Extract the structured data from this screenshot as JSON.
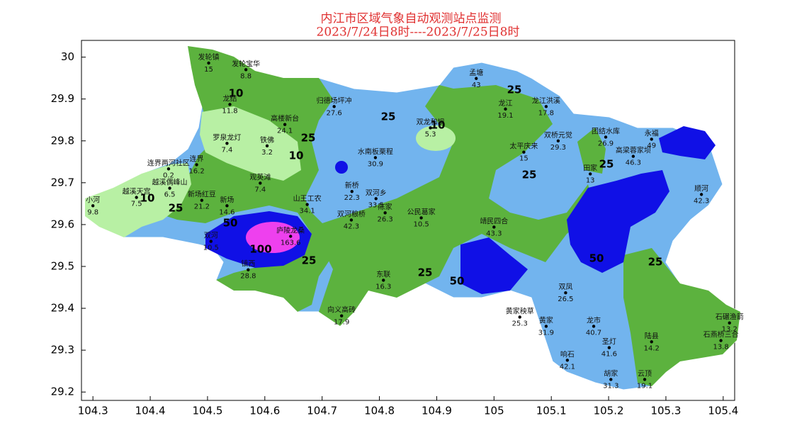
{
  "title": "内江市区域气象自动观测站点监测",
  "subtitle": "2023/7/24日8时----2023/7/25日8时",
  "map": {
    "xlim": [
      104.28,
      105.42
    ],
    "ylim": [
      29.18,
      30.04
    ],
    "xticks": [
      104.3,
      104.4,
      104.5,
      104.6,
      104.7,
      104.8,
      104.9,
      105,
      105.1,
      105.2,
      105.3,
      105.4
    ],
    "yticks": [
      29.2,
      29.3,
      29.4,
      29.5,
      29.6,
      29.7,
      29.8,
      29.9,
      30
    ],
    "contour_labels": [
      10,
      25,
      25,
      10,
      25,
      10,
      10,
      25,
      50,
      100,
      25,
      25,
      50,
      25,
      25,
      50,
      25
    ],
    "stations": [
      {
        "name": "发轮镇",
        "value": 15,
        "lon": 104.502,
        "lat": 29.986
      },
      {
        "name": "发轮宝华",
        "value": 8.8,
        "lon": 104.567,
        "lat": 29.97
      },
      {
        "name": "龙结",
        "value": 11.8,
        "lon": 104.539,
        "lat": 29.887
      },
      {
        "name": "高楼新台",
        "value": 24.1,
        "lon": 104.635,
        "lat": 29.839
      },
      {
        "name": "归德场坪冲",
        "value": 27.6,
        "lon": 104.721,
        "lat": 29.882
      },
      {
        "name": "罗泉龙灯",
        "value": 7.4,
        "lon": 104.534,
        "lat": 29.794
      },
      {
        "name": "铁佛",
        "value": 3.2,
        "lon": 104.604,
        "lat": 29.788
      },
      {
        "name": "连界两河社区",
        "value": 0.2,
        "lon": 104.432,
        "lat": 29.733
      },
      {
        "name": "连界",
        "value": 16.2,
        "lon": 104.481,
        "lat": 29.743
      },
      {
        "name": "越溪天宫",
        "value": 7.5,
        "lon": 104.376,
        "lat": 29.665
      },
      {
        "name": "越溪偶峰山",
        "value": 6.5,
        "lon": 104.434,
        "lat": 29.687
      },
      {
        "name": "观英滩",
        "value": 7.4,
        "lon": 104.592,
        "lat": 29.699
      },
      {
        "name": "新场",
        "value": 14.6,
        "lon": 104.534,
        "lat": 29.645
      },
      {
        "name": "新场红豆",
        "value": 21.2,
        "lon": 104.49,
        "lat": 29.658
      },
      {
        "name": "小河",
        "value": 9.8,
        "lon": 104.3,
        "lat": 29.645
      },
      {
        "name": "山王工农",
        "value": 34.1,
        "lon": 104.674,
        "lat": 29.648
      },
      {
        "name": "庐陵龙桑",
        "value": 163.6,
        "lon": 104.645,
        "lat": 29.572
      },
      {
        "name": "双河",
        "value": 10.5,
        "lon": 104.506,
        "lat": 29.56
      },
      {
        "name": "镇西",
        "value": 28.8,
        "lon": 104.571,
        "lat": 29.492
      },
      {
        "name": "水南板栗程",
        "value": 30.9,
        "lon": 104.793,
        "lat": 29.76
      },
      {
        "name": "新桥",
        "value": 22.3,
        "lon": 104.752,
        "lat": 29.679
      },
      {
        "name": "双河乡",
        "value": 33.5,
        "lon": 104.794,
        "lat": 29.662
      },
      {
        "name": "双河粮桥",
        "value": 42.3,
        "lon": 104.751,
        "lat": 29.611
      },
      {
        "name": "陈家",
        "value": 26.3,
        "lon": 104.81,
        "lat": 29.628
      },
      {
        "name": "公民葛家",
        "value": 10.5,
        "lon": 104.873,
        "lat": 29.616
      },
      {
        "name": "孟塘",
        "value": 43,
        "lon": 104.969,
        "lat": 29.949
      },
      {
        "name": "龙江",
        "value": 19.1,
        "lon": 105.02,
        "lat": 29.876
      },
      {
        "name": "龙江洪溪",
        "value": 17.8,
        "lon": 105.091,
        "lat": 29.882
      },
      {
        "name": "双龙和坝",
        "value": 5.3,
        "lon": 104.889,
        "lat": 29.831
      },
      {
        "name": "太平庆来",
        "value": 15,
        "lon": 105.052,
        "lat": 29.773
      },
      {
        "name": "双桥元觉",
        "value": 29.3,
        "lon": 105.112,
        "lat": 29.8
      },
      {
        "name": "团结水库",
        "value": 26.9,
        "lon": 105.195,
        "lat": 29.809
      },
      {
        "name": "永福",
        "value": 49,
        "lon": 105.275,
        "lat": 29.804
      },
      {
        "name": "高梁蓉家坝",
        "value": 46.3,
        "lon": 105.243,
        "lat": 29.763
      },
      {
        "name": "田家",
        "value": 13,
        "lon": 105.168,
        "lat": 29.721
      },
      {
        "name": "顺河",
        "value": 42.3,
        "lon": 105.362,
        "lat": 29.672
      },
      {
        "name": "靖民四合",
        "value": 43.3,
        "lon": 105.0,
        "lat": 29.594
      },
      {
        "name": "双凤",
        "value": 26.5,
        "lon": 105.125,
        "lat": 29.437
      },
      {
        "name": "石碾渔箭",
        "value": 13.2,
        "lon": 105.411,
        "lat": 29.365
      },
      {
        "name": "石燕桥三合",
        "value": 13.8,
        "lon": 105.396,
        "lat": 29.323
      },
      {
        "name": "龙市",
        "value": 40.7,
        "lon": 105.174,
        "lat": 29.357
      },
      {
        "name": "黄家",
        "value": 31.9,
        "lon": 105.091,
        "lat": 29.357
      },
      {
        "name": "黄家秧草",
        "value": 25.3,
        "lon": 105.045,
        "lat": 29.379
      },
      {
        "name": "圣灯",
        "value": 41.6,
        "lon": 105.201,
        "lat": 29.306
      },
      {
        "name": "响石",
        "value": 42.1,
        "lon": 105.128,
        "lat": 29.276
      },
      {
        "name": "胡家",
        "value": 31.3,
        "lon": 105.204,
        "lat": 29.23
      },
      {
        "name": "云顶",
        "value": 19.1,
        "lon": 105.263,
        "lat": 29.23
      },
      {
        "name": "陆县",
        "value": 14.2,
        "lon": 105.275,
        "lat": 29.32
      },
      {
        "name": "东联",
        "value": 16.3,
        "lon": 104.807,
        "lat": 29.467
      },
      {
        "name": "向义高砖",
        "value": 17.9,
        "lon": 104.734,
        "lat": 29.382
      }
    ]
  }
}
